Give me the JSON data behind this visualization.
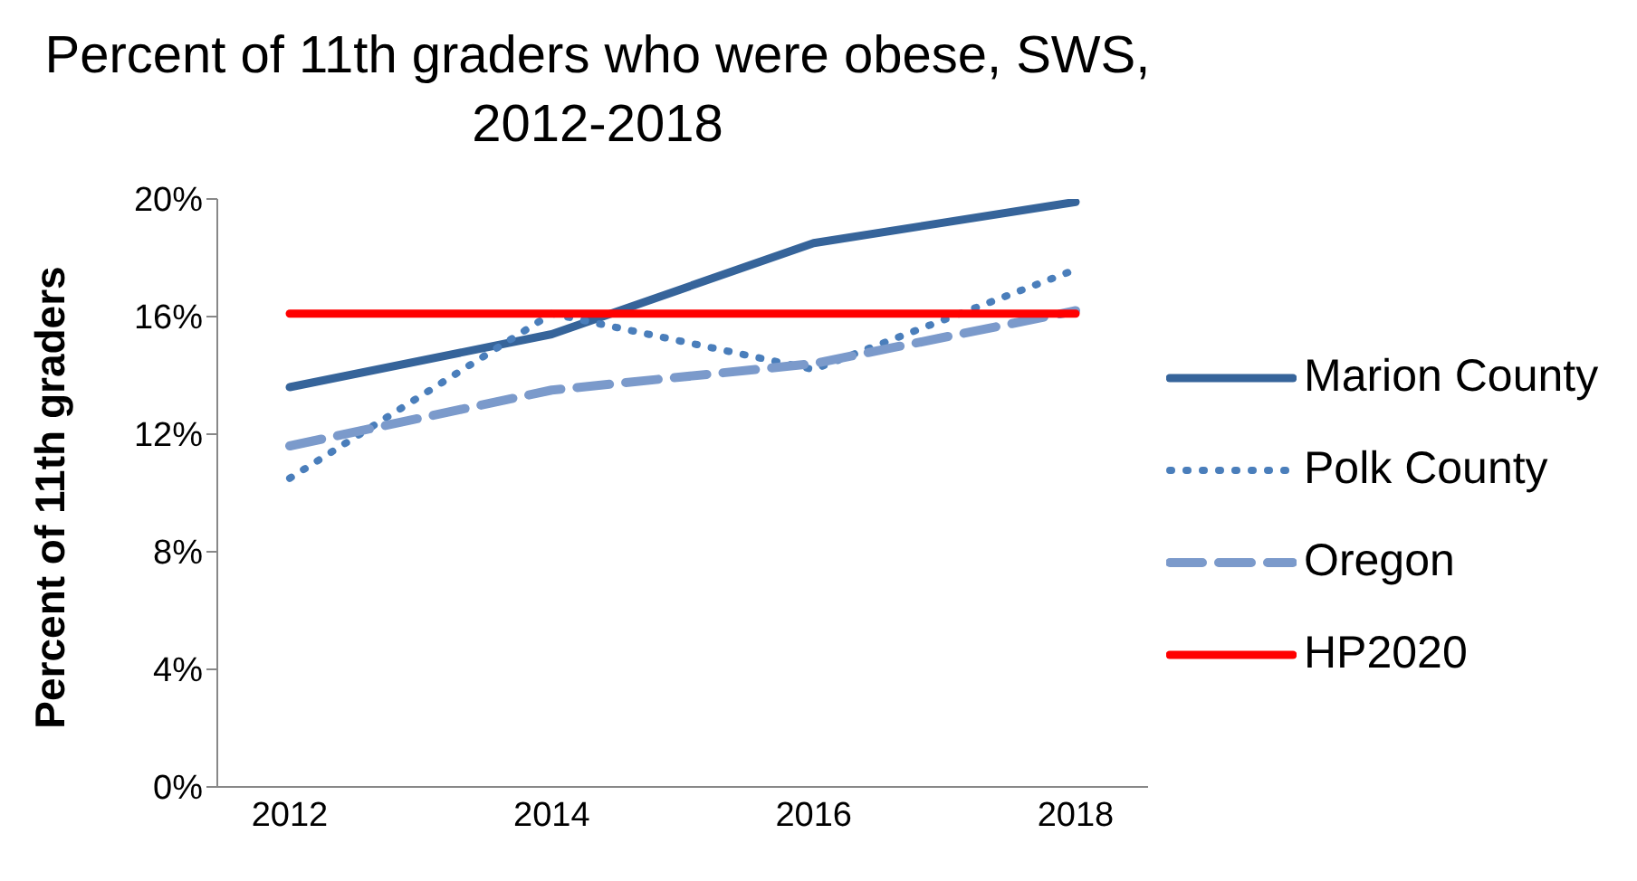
{
  "chart_data": {
    "type": "line",
    "title": "Percent of 11th graders who were obese, SWS, 2012-2018",
    "ylabel": "Percent of 11th graders",
    "categories": [
      "2012",
      "2014",
      "2016",
      "2018"
    ],
    "series": [
      {
        "name": "Marion County",
        "color": "#36649a",
        "values": [
          13.6,
          15.4,
          18.5,
          19.9
        ],
        "line_style": "solid"
      },
      {
        "name": "Polk County",
        "color": "#4a7ebb",
        "values": [
          10.5,
          16.1,
          14.2,
          17.6
        ],
        "line_style": "dotted"
      },
      {
        "name": "Oregon",
        "color": "#7b9acb",
        "values": [
          11.6,
          13.5,
          14.4,
          16.2
        ],
        "line_style": "dashed"
      },
      {
        "name": "HP2020",
        "color": "#ff0000",
        "values": [
          16.1,
          16.1,
          16.1,
          16.1
        ],
        "line_style": "solid"
      }
    ],
    "ylim": [
      0,
      20
    ],
    "yticks": [
      {
        "value": 0,
        "label": "0%"
      },
      {
        "value": 4,
        "label": "4%"
      },
      {
        "value": 8,
        "label": "8%"
      },
      {
        "value": 12,
        "label": "12%"
      },
      {
        "value": 16,
        "label": "16%"
      },
      {
        "value": 20,
        "label": "20%"
      }
    ],
    "grid": false,
    "legend": "right",
    "marker": "none"
  }
}
